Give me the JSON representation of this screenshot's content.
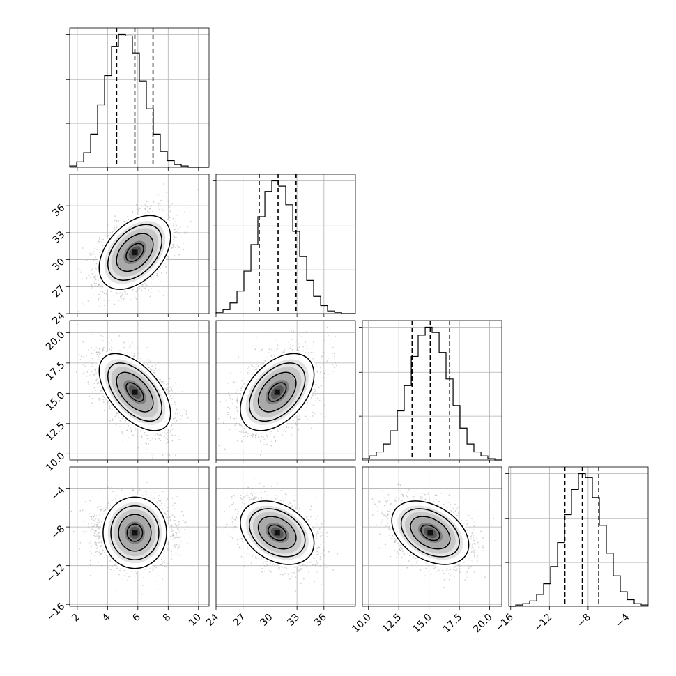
{
  "chart_data": {
    "type": "corner",
    "grid": true,
    "parameters": [
      {
        "mean": 5.8,
        "std": 1.15,
        "range": [
          1.5,
          10.7
        ],
        "ticks": [
          2,
          4,
          6,
          8,
          10
        ],
        "tick_labels": [
          "2",
          "4",
          "6",
          "8",
          "10"
        ],
        "quantiles": [
          4.6,
          5.8,
          7.0
        ]
      },
      {
        "mean": 30.8,
        "std": 2.0,
        "range": [
          24.0,
          39.5
        ],
        "ticks": [
          24,
          27,
          30,
          33,
          36
        ],
        "tick_labels": [
          "24",
          "27",
          "30",
          "33",
          "36"
        ],
        "quantiles": [
          28.8,
          30.9,
          32.9
        ]
      },
      {
        "mean": 15.1,
        "std": 1.55,
        "range": [
          9.5,
          21.0
        ],
        "ticks": [
          10.0,
          12.5,
          15.0,
          17.5,
          20.0
        ],
        "tick_labels": [
          "10.0",
          "12.5",
          "15.0",
          "17.5",
          "20.0"
        ],
        "quantiles": [
          13.6,
          15.1,
          16.7
        ]
      },
      {
        "mean": -8.6,
        "std": 1.6,
        "range": [
          -16.2,
          -1.8
        ],
        "ticks": [
          -16,
          -12,
          -8,
          -4
        ],
        "tick_labels": [
          "−16",
          "−12",
          "−8",
          "−4"
        ],
        "quantiles": [
          -10.4,
          -8.6,
          -6.9
        ]
      }
    ],
    "correlations": [
      [
        1.0,
        0.42,
        -0.55,
        0.0
      ],
      [
        0.42,
        1.0,
        0.45,
        -0.32
      ],
      [
        -0.55,
        0.45,
        1.0,
        -0.38
      ],
      [
        0.0,
        -0.32,
        -0.38,
        1.0
      ]
    ],
    "histograms": [
      {
        "bin_edges": [
          1.5,
          1.96,
          2.42,
          2.88,
          3.34,
          3.8,
          4.26,
          4.72,
          5.18,
          5.64,
          6.1,
          6.56,
          7.02,
          7.48,
          7.94,
          8.4,
          8.86,
          9.32,
          9.78,
          10.24,
          10.7
        ],
        "counts": [
          1,
          4,
          11,
          25,
          47,
          69,
          91,
          100,
          99,
          86,
          65,
          44,
          25,
          12,
          5,
          2,
          1,
          0,
          0,
          0
        ]
      },
      {
        "bin_edges": [
          24.0,
          24.78,
          25.55,
          26.33,
          27.1,
          27.88,
          28.65,
          29.43,
          30.2,
          30.98,
          31.75,
          32.53,
          33.3,
          34.08,
          34.85,
          35.63,
          36.4,
          37.18,
          37.95,
          38.73,
          39.5
        ],
        "counts": [
          1,
          3,
          8,
          17,
          32,
          52,
          73,
          92,
          100,
          96,
          82,
          62,
          43,
          25,
          13,
          6,
          2,
          1,
          0,
          0
        ]
      },
      {
        "bin_edges": [
          9.5,
          10.08,
          10.65,
          11.23,
          11.8,
          12.38,
          12.95,
          13.53,
          14.1,
          14.68,
          15.25,
          15.83,
          16.4,
          16.98,
          17.55,
          18.13,
          18.7,
          19.28,
          19.85,
          20.43,
          21.0
        ],
        "counts": [
          1,
          3,
          6,
          12,
          22,
          37,
          56,
          78,
          94,
          100,
          96,
          81,
          61,
          41,
          24,
          12,
          6,
          3,
          1,
          0
        ]
      },
      {
        "bin_edges": [
          -16.2,
          -15.48,
          -14.76,
          -14.04,
          -13.32,
          -12.6,
          -11.88,
          -11.16,
          -10.44,
          -9.72,
          -9.0,
          -8.28,
          -7.56,
          -6.84,
          -6.12,
          -5.4,
          -4.68,
          -3.96,
          -3.24,
          -2.52,
          -1.8
        ],
        "counts": [
          0,
          1,
          2,
          4,
          9,
          17,
          30,
          48,
          69,
          88,
          100,
          97,
          82,
          61,
          40,
          23,
          11,
          5,
          2,
          1
        ]
      }
    ]
  }
}
